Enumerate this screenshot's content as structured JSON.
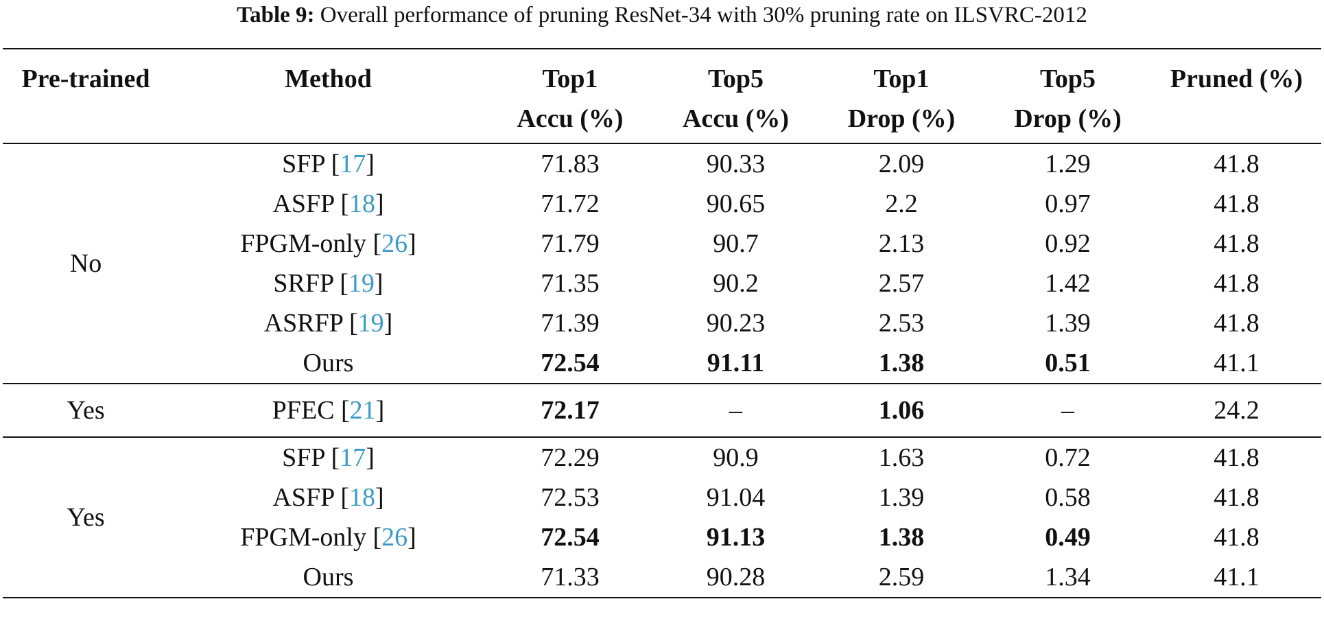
{
  "caption": {
    "label": "Table 9:",
    "text": " Overall performance of pruning ResNet-34 with 30% pruning rate on ILSVRC-2012"
  },
  "header": {
    "col0": "Pre-trained",
    "col1": "Method",
    "col2_l1": "Top1",
    "col2_l2": "Accu (%)",
    "col3_l1": "Top5",
    "col3_l2": "Accu (%)",
    "col4_l1": "Top1",
    "col4_l2": "Drop (%)",
    "col5_l1": "Top5",
    "col5_l2": "Drop (%)",
    "col6": "Pruned (%)"
  },
  "groups": [
    {
      "pretrained": "No",
      "rows": [
        {
          "method": "SFP",
          "cite": "17",
          "top1": "71.83",
          "top5": "90.33",
          "top1drop": "2.09",
          "top5drop": "1.29",
          "pruned": "41.8"
        },
        {
          "method": "ASFP",
          "cite": "18",
          "top1": "71.72",
          "top5": "90.65",
          "top1drop": "2.2",
          "top5drop": "0.97",
          "pruned": "41.8"
        },
        {
          "method": "FPGM-only",
          "cite": "26",
          "top1": "71.79",
          "top5": "90.7",
          "top1drop": "2.13",
          "top5drop": "0.92",
          "pruned": "41.8"
        },
        {
          "method": "SRFP",
          "cite": "19",
          "top1": "71.35",
          "top5": "90.2",
          "top1drop": "2.57",
          "top5drop": "1.42",
          "pruned": "41.8"
        },
        {
          "method": "ASRFP",
          "cite": "19",
          "top1": "71.39",
          "top5": "90.23",
          "top1drop": "2.53",
          "top5drop": "1.39",
          "pruned": "41.8"
        },
        {
          "method": "Ours",
          "cite": "",
          "top1": "72.54",
          "top5": "91.11",
          "top1drop": "1.38",
          "top5drop": "0.51",
          "pruned": "41.1"
        }
      ]
    },
    {
      "pretrained": "Yes",
      "rows": [
        {
          "method": "PFEC",
          "cite": "21",
          "top1": "72.17",
          "top5": "–",
          "top1drop": "1.06",
          "top5drop": "–",
          "pruned": "24.2"
        }
      ]
    },
    {
      "pretrained": "Yes",
      "rows": [
        {
          "method": "SFP",
          "cite": "17",
          "top1": "72.29",
          "top5": "90.9",
          "top1drop": "1.63",
          "top5drop": "0.72",
          "pruned": "41.8"
        },
        {
          "method": "ASFP",
          "cite": "18",
          "top1": "72.53",
          "top5": "91.04",
          "top1drop": "1.39",
          "top5drop": "0.58",
          "pruned": "41.8"
        },
        {
          "method": "FPGM-only",
          "cite": "26",
          "top1": "72.54",
          "top5": "91.13",
          "top1drop": "1.38",
          "top5drop": "0.49",
          "pruned": "41.8"
        },
        {
          "method": "Ours",
          "cite": "",
          "top1": "71.33",
          "top5": "90.28",
          "top1drop": "2.59",
          "top5drop": "1.34",
          "pruned": "41.1"
        }
      ]
    }
  ]
}
